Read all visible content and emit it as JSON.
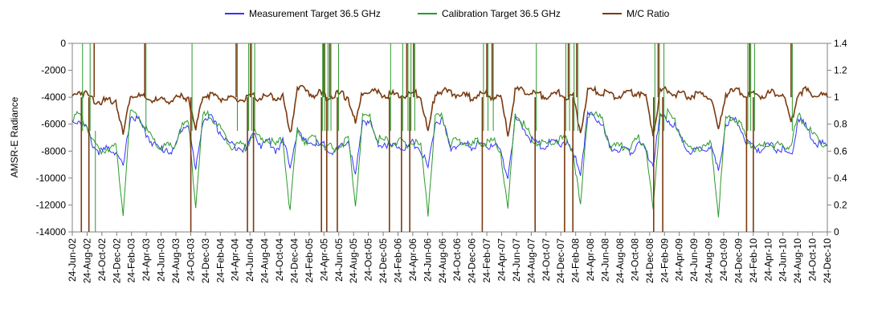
{
  "legend": {
    "measurement": "Measurement Target 36.5 GHz",
    "calibration": "Calibration Target 36.5 GHz",
    "ratio": "M/C Ratio"
  },
  "colors": {
    "measurement": "#3333ff",
    "calibration": "#2a9a2a",
    "ratio": "#7a3a10",
    "axis": "#808080"
  },
  "chart_data": {
    "type": "line",
    "ylabel": "AMSR-E Radiance",
    "ylim": [
      -14000,
      0
    ],
    "y_ticks": [
      0,
      -2000,
      -4000,
      -6000,
      -8000,
      -10000,
      -12000,
      -14000
    ],
    "y2lim": [
      0,
      1.4
    ],
    "y2_ticks": [
      1.4,
      1.2,
      1,
      0.8,
      0.6,
      0.4,
      0.2,
      0
    ],
    "x_ticks": [
      "24-Jun-02",
      "24-Aug-02",
      "24-Oct-02",
      "24-Dec-02",
      "24-Feb-03",
      "24-Apr-03",
      "24-Jun-03",
      "24-Aug-03",
      "24-Oct-03",
      "24-Dec-03",
      "24-Feb-04",
      "24-Apr-04",
      "24-Jun-04",
      "24-Aug-04",
      "24-Oct-04",
      "24-Dec-04",
      "24-Feb-05",
      "24-Apr-05",
      "24-Jun-05",
      "24-Aug-05",
      "24-Oct-05",
      "24-Dec-05",
      "24-Feb-06",
      "24-Apr-06",
      "24-Jun-06",
      "24-Aug-06",
      "24-Oct-06",
      "24-Dec-06",
      "24-Feb-07",
      "24-Apr-07",
      "24-Jun-07",
      "24-Aug-07",
      "24-Oct-07",
      "24-Dec-07",
      "24-Feb-08",
      "24-Apr-08",
      "24-Jun-08",
      "24-Aug-08",
      "24-Oct-08",
      "24-Dec-08",
      "24-Feb-09",
      "24-Apr-09",
      "24-Jun-09",
      "24-Aug-09",
      "24-Oct-09",
      "24-Dec-09",
      "24-Feb-10",
      "24-Apr-10",
      "24-Jun-10",
      "24-Aug-10",
      "24-Oct-10",
      "24-Dec-10"
    ],
    "series": [
      {
        "name": "Measurement Target 36.5 GHz",
        "axis": "left",
        "values": [
          -5800,
          -5700,
          -6400,
          -7700,
          -8100,
          -7800,
          -8000,
          -9300,
          -5400,
          -5600,
          -6600,
          -7300,
          -7900,
          -7800,
          -8100,
          -6300,
          -6000,
          -9500,
          -5600,
          -5500,
          -6300,
          -7100,
          -7600,
          -7600,
          -7900,
          -6500,
          -7600,
          -7200,
          -7900,
          -7300,
          -9000,
          -6500,
          -7400,
          -7300,
          -7600,
          -7600,
          -8200,
          -7800,
          -7100,
          -10000,
          -5700,
          -5800,
          -7400,
          -7400,
          -7700,
          -7500,
          -7800,
          -7400,
          -7900,
          -9300,
          -5800,
          -5800,
          -7700,
          -7600,
          -7500,
          -7700,
          -7400,
          -7800,
          -7300,
          -8200,
          -9800,
          -5800,
          -6200,
          -7000,
          -7500,
          -7600,
          -7400,
          -7400,
          -7300,
          -8300,
          -9500,
          -5400,
          -5500,
          -6000,
          -7800,
          -7800,
          -7800,
          -8000,
          -7300,
          -8000,
          -9000,
          -5400,
          -5600,
          -6100,
          -7300,
          -8100,
          -8000,
          -7900,
          -7600,
          -9600,
          -5900,
          -5700,
          -6100,
          -7500,
          -7800,
          -7800,
          -7600,
          -7800,
          -8000,
          -8400,
          -5600,
          -6200,
          -7100,
          -7500,
          -7600
        ]
      },
      {
        "name": "Calibration Target 36.5 GHz",
        "axis": "left",
        "values": [
          -5400,
          -5400,
          -6100,
          -7500,
          -8000,
          -7700,
          -7700,
          -12500,
          -5200,
          -5300,
          -6300,
          -7100,
          -7800,
          -7600,
          -7800,
          -6200,
          -5900,
          -12000,
          -5400,
          -5300,
          -6000,
          -6900,
          -7600,
          -7500,
          -7700,
          -6500,
          -7300,
          -7100,
          -7600,
          -7100,
          -12500,
          -6300,
          -7200,
          -7100,
          -7300,
          -7600,
          -7900,
          -7500,
          -7100,
          -12000,
          -5500,
          -5500,
          -7100,
          -7200,
          -7400,
          -7300,
          -7600,
          -7200,
          -7700,
          -12500,
          -5600,
          -5500,
          -7400,
          -7300,
          -7300,
          -7600,
          -7200,
          -7500,
          -7200,
          -8000,
          -12500,
          -5200,
          -5900,
          -6800,
          -7300,
          -7500,
          -7300,
          -7100,
          -7200,
          -8000,
          -12200,
          -5200,
          -5200,
          -5800,
          -7500,
          -7700,
          -7600,
          -7700,
          -7000,
          -7600,
          -12500,
          -5200,
          -5200,
          -5800,
          -7100,
          -8000,
          -7700,
          -7700,
          -7500,
          -12600,
          -5700,
          -5500,
          -5900,
          -7300,
          -7600,
          -7700,
          -7400,
          -7600,
          -7700,
          -7500,
          -5400,
          -5900,
          -6900,
          -7300,
          -7500
        ]
      },
      {
        "name": "M/C Ratio",
        "axis": "right",
        "values": [
          1.0,
          1.05,
          1.02,
          0.98,
          0.97,
          0.97,
          0.98,
          0.72,
          1.02,
          1.01,
          0.99,
          0.98,
          0.97,
          0.98,
          0.98,
          1.0,
          1.0,
          0.75,
          1.02,
          1.02,
          1.0,
          0.99,
          0.98,
          0.98,
          0.99,
          1.0,
          1.0,
          1.0,
          1.0,
          1.0,
          0.72,
          1.08,
          1.05,
          1.02,
          1.03,
          1.0,
          1.02,
          1.02,
          1.0,
          0.8,
          1.04,
          1.06,
          1.03,
          1.02,
          1.02,
          1.02,
          1.01,
          1.03,
          1.01,
          0.73,
          1.04,
          1.05,
          1.03,
          1.02,
          1.01,
          1.0,
          1.02,
          1.02,
          1.0,
          1.0,
          0.72,
          1.05,
          1.05,
          1.03,
          1.02,
          1.01,
          1.01,
          1.03,
          1.0,
          1.0,
          0.74,
          1.04,
          1.05,
          1.03,
          1.02,
          1.01,
          1.02,
          1.03,
          1.04,
          1.0,
          0.73,
          1.04,
          1.06,
          1.03,
          1.02,
          1.01,
          1.02,
          1.02,
          1.0,
          0.74,
          1.03,
          1.04,
          1.04,
          1.02,
          1.02,
          1.01,
          1.03,
          1.03,
          1.02,
          0.8,
          1.04,
          1.05,
          1.02,
          1.02,
          1.0
        ]
      }
    ],
    "spike_positions": [
      {
        "x": 0.012,
        "ratio_to": 0,
        "cal_to": 0
      },
      {
        "x": 0.022,
        "ratio_to": 0,
        "cal_to": 0
      },
      {
        "x": 0.029,
        "ratio_to": 1.4,
        "cal_to": -14000
      },
      {
        "x": 0.096,
        "ratio_to": 1.4,
        "cal_to": 0
      },
      {
        "x": 0.157,
        "ratio_to": 0,
        "cal_to": 0
      },
      {
        "x": 0.217,
        "ratio_to": 1.4,
        "cal_to": 0
      },
      {
        "x": 0.232,
        "ratio_to": 0,
        "cal_to": 0
      },
      {
        "x": 0.236,
        "ratio_to": 1.4,
        "cal_to": 0
      },
      {
        "x": 0.24,
        "ratio_to": 0,
        "cal_to": 0
      },
      {
        "x": 0.33,
        "ratio_to": 0,
        "cal_to": 0
      },
      {
        "x": 0.333,
        "ratio_to": 1.4,
        "cal_to": 0
      },
      {
        "x": 0.337,
        "ratio_to": 0,
        "cal_to": 0
      },
      {
        "x": 0.341,
        "ratio_to": 1.4,
        "cal_to": 0
      },
      {
        "x": 0.351,
        "ratio_to": 0,
        "cal_to": 0
      },
      {
        "x": 0.42,
        "ratio_to": 0,
        "cal_to": 0
      },
      {
        "x": 0.436,
        "ratio_to": 0,
        "cal_to": 0
      },
      {
        "x": 0.443,
        "ratio_to": 1.4,
        "cal_to": 0
      },
      {
        "x": 0.447,
        "ratio_to": 0,
        "cal_to": 0
      },
      {
        "x": 0.452,
        "ratio_to": 1.4,
        "cal_to": 0
      },
      {
        "x": 0.543,
        "ratio_to": 0,
        "cal_to": 0
      },
      {
        "x": 0.549,
        "ratio_to": 1.4,
        "cal_to": 0
      },
      {
        "x": 0.556,
        "ratio_to": 1.4,
        "cal_to": 0
      },
      {
        "x": 0.613,
        "ratio_to": 0,
        "cal_to": 0
      },
      {
        "x": 0.652,
        "ratio_to": 0,
        "cal_to": 0
      },
      {
        "x": 0.657,
        "ratio_to": 1.4,
        "cal_to": 0
      },
      {
        "x": 0.663,
        "ratio_to": 0,
        "cal_to": 0
      },
      {
        "x": 0.668,
        "ratio_to": 1.4,
        "cal_to": 0
      },
      {
        "x": 0.77,
        "ratio_to": 0,
        "cal_to": 0
      },
      {
        "x": 0.776,
        "ratio_to": 1.4,
        "cal_to": 0
      },
      {
        "x": 0.782,
        "ratio_to": 0,
        "cal_to": 0
      },
      {
        "x": 0.893,
        "ratio_to": 0,
        "cal_to": 0
      },
      {
        "x": 0.897,
        "ratio_to": 1.4,
        "cal_to": 0
      },
      {
        "x": 0.902,
        "ratio_to": 0,
        "cal_to": 0
      },
      {
        "x": 0.952,
        "ratio_to": 1.4,
        "cal_to": 0
      }
    ]
  }
}
